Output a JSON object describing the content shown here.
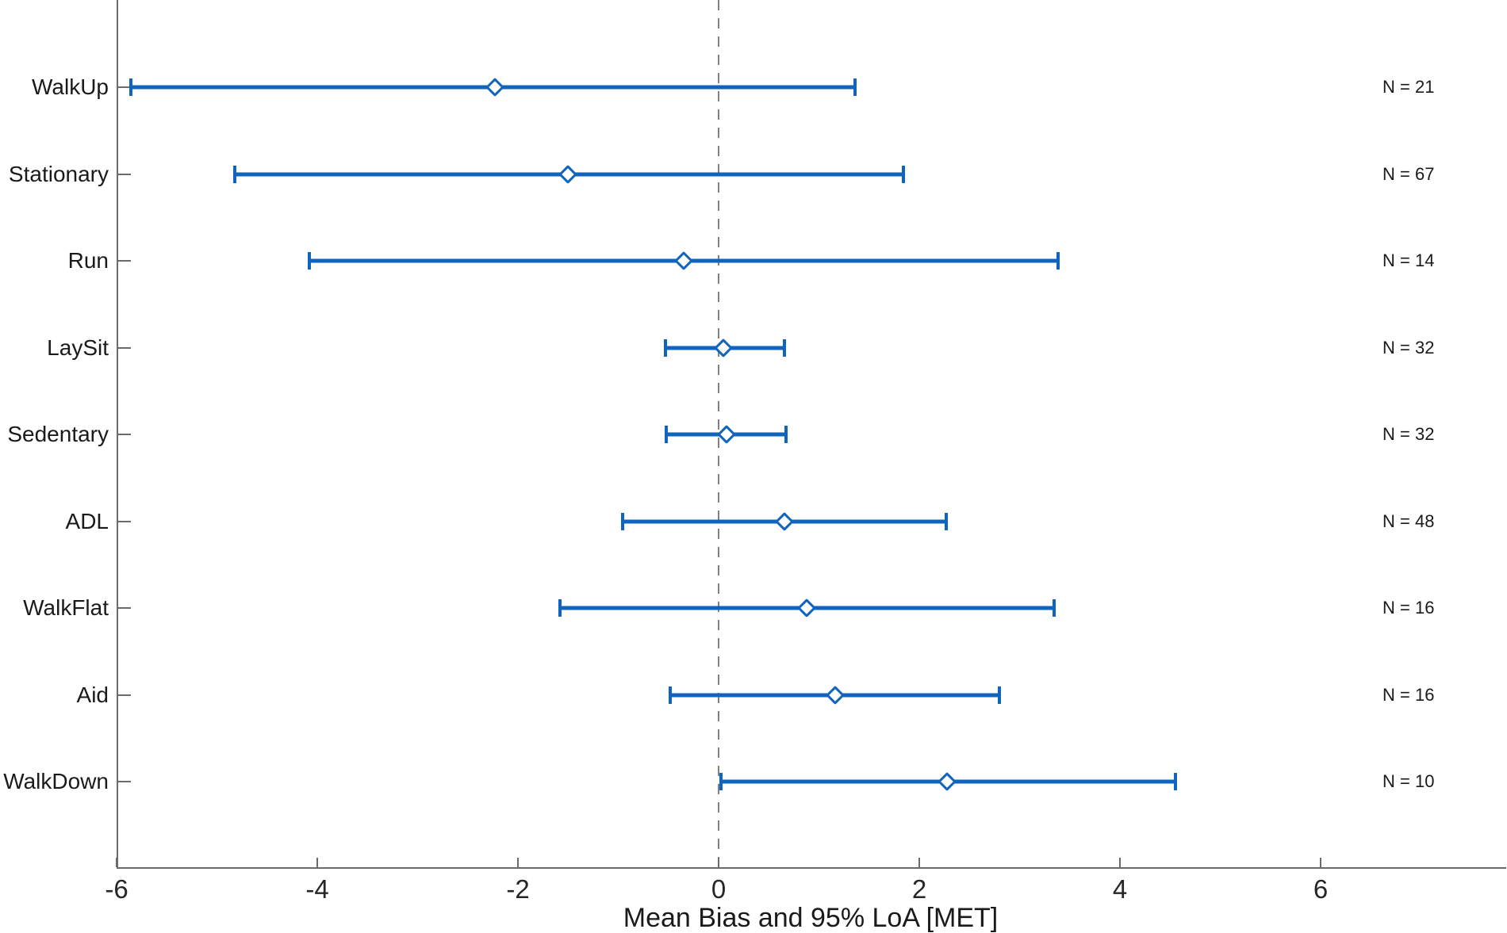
{
  "chart_data": {
    "type": "scatter",
    "subtype": "errorbar_forest_plot",
    "title": "",
    "xlabel": "Mean Bias and 95% LoA [MET]",
    "ylabel": "",
    "xlim": [
      -6,
      7.85
    ],
    "xticks": [
      -6,
      -4,
      -2,
      0,
      2,
      4,
      6
    ],
    "reference_line_x": 0,
    "grid": false,
    "legend": "none",
    "categories": [
      "WalkUp",
      "Stationary",
      "Run",
      "LaySit",
      "Sedentary",
      "ADL",
      "WalkFlat",
      "Aid",
      "WalkDown"
    ],
    "series": [
      {
        "name": "Mean bias with 95% limits of agreement",
        "points": [
          {
            "label": "WalkUp",
            "mean": -2.23,
            "loa_lower": -5.86,
            "loa_upper": 1.36,
            "n_label": "N = 21"
          },
          {
            "label": "Stationary",
            "mean": -1.5,
            "loa_lower": -4.82,
            "loa_upper": 1.84,
            "n_label": "N = 67"
          },
          {
            "label": "Run",
            "mean": -0.35,
            "loa_lower": -4.08,
            "loa_upper": 3.38,
            "n_label": "N = 14"
          },
          {
            "label": "LaySit",
            "mean": 0.05,
            "loa_lower": -0.53,
            "loa_upper": 0.66,
            "n_label": "N = 32"
          },
          {
            "label": "Sedentary",
            "mean": 0.08,
            "loa_lower": -0.52,
            "loa_upper": 0.67,
            "n_label": "N = 32"
          },
          {
            "label": "ADL",
            "mean": 0.66,
            "loa_lower": -0.96,
            "loa_upper": 2.27,
            "n_label": "N = 48"
          },
          {
            "label": "WalkFlat",
            "mean": 0.88,
            "loa_lower": -1.58,
            "loa_upper": 3.34,
            "n_label": "N = 16"
          },
          {
            "label": "Aid",
            "mean": 1.16,
            "loa_lower": -0.48,
            "loa_upper": 2.8,
            "n_label": "N = 16"
          },
          {
            "label": "WalkDown",
            "mean": 2.28,
            "loa_lower": 0.02,
            "loa_upper": 4.55,
            "n_label": "N = 10"
          }
        ]
      }
    ]
  },
  "styles": {
    "accent_color": "#1164be",
    "reference_line_color": "#828282",
    "axis_color": "#6b6b6b",
    "text_color": "#1a1a1a",
    "marker_fill": "#ffffff",
    "background": "#ffffff"
  }
}
